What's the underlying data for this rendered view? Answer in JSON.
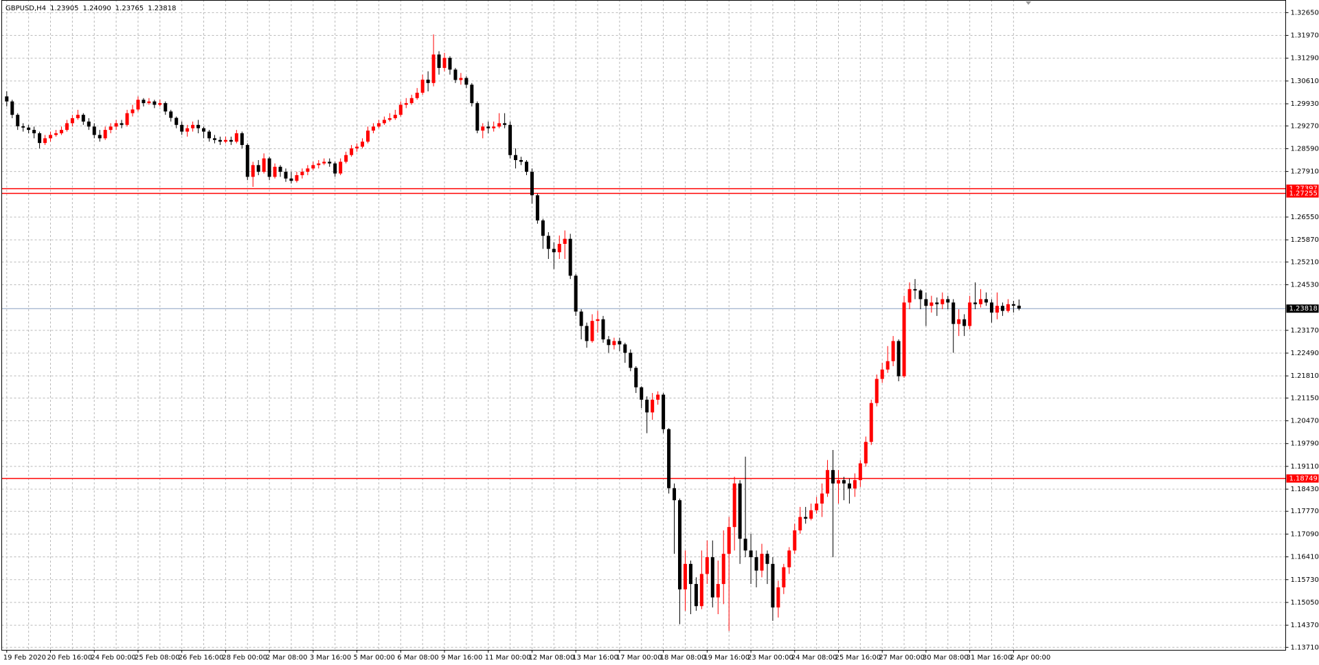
{
  "chart_data": {
    "type": "candlestick",
    "title": "GBPUSD,H4",
    "header_values": [
      "1.23905",
      "1.24090",
      "1.23765",
      "1.23818"
    ],
    "up_color": "#ff0000",
    "down_color": "#000000",
    "grid": true,
    "ylim": [
      1.13634,
      1.33027
    ],
    "yticks": [
      {
        "value": 1.3265,
        "label": "1.32650"
      },
      {
        "value": 1.3197,
        "label": "1.31970"
      },
      {
        "value": 1.3129,
        "label": "1.31290"
      },
      {
        "value": 1.3061,
        "label": "1.30610"
      },
      {
        "value": 1.2993,
        "label": "1.29930"
      },
      {
        "value": 1.2927,
        "label": "1.29270"
      },
      {
        "value": 1.2859,
        "label": "1.28590"
      },
      {
        "value": 1.2791,
        "label": "1.27910"
      },
      {
        "value": 1.2655,
        "label": "1.26550"
      },
      {
        "value": 1.2587,
        "label": "1.25870"
      },
      {
        "value": 1.2521,
        "label": "1.25210"
      },
      {
        "value": 1.2453,
        "label": "1.24530"
      },
      {
        "value": 1.2317,
        "label": "1.23170"
      },
      {
        "value": 1.2249,
        "label": "1.22490"
      },
      {
        "value": 1.2181,
        "label": "1.21810"
      },
      {
        "value": 1.2115,
        "label": "1.21150"
      },
      {
        "value": 1.2047,
        "label": "1.20470"
      },
      {
        "value": 1.1979,
        "label": "1.19790"
      },
      {
        "value": 1.1911,
        "label": "1.19110"
      },
      {
        "value": 1.1843,
        "label": "1.18430"
      },
      {
        "value": 1.1777,
        "label": "1.17770"
      },
      {
        "value": 1.1709,
        "label": "1.17090"
      },
      {
        "value": 1.1641,
        "label": "1.16410"
      },
      {
        "value": 1.1573,
        "label": "1.15730"
      },
      {
        "value": 1.1505,
        "label": "1.15050"
      },
      {
        "value": 1.1437,
        "label": "1.14370"
      },
      {
        "value": 1.1371,
        "label": "1.13710"
      }
    ],
    "hlines": [
      {
        "value": 1.27397,
        "color": "#ff0000"
      },
      {
        "value": 1.27255,
        "color": "#ff0000"
      },
      {
        "value": 1.18749,
        "color": "#ff0000"
      }
    ],
    "price_line_color": "#8aa0c0",
    "categories": [
      "19 Feb 2020",
      null,
      null,
      null,
      null,
      null,
      null,
      null,
      "20 Feb 16:00",
      null,
      null,
      null,
      null,
      null,
      null,
      null,
      "24 Feb 00:00",
      null,
      null,
      null,
      null,
      null,
      null,
      null,
      "25 Feb 08:00",
      null,
      null,
      null,
      null,
      null,
      null,
      null,
      "26 Feb 16:00",
      null,
      null,
      null,
      null,
      null,
      null,
      null,
      "28 Feb 00:00",
      null,
      null,
      null,
      null,
      null,
      null,
      null,
      "2 Mar 08:00",
      null,
      null,
      null,
      null,
      null,
      null,
      null,
      "3 Mar 16:00",
      null,
      null,
      null,
      null,
      null,
      null,
      null,
      "5 Mar 00:00",
      null,
      null,
      null,
      null,
      null,
      null,
      null,
      "6 Mar 08:00",
      null,
      null,
      null,
      null,
      null,
      null,
      null,
      "9 Mar 16:00",
      null,
      null,
      null,
      null,
      null,
      null,
      null,
      "11 Mar 00:00",
      null,
      null,
      null,
      null,
      null,
      null,
      null,
      "12 Mar 08:00",
      null,
      null,
      null,
      null,
      null,
      null,
      null,
      "13 Mar 16:00",
      null,
      null,
      null,
      null,
      null,
      null,
      null,
      "17 Mar 00:00",
      null,
      null,
      null,
      null,
      null,
      null,
      null,
      "18 Mar 08:00",
      null,
      null,
      null,
      null,
      null,
      null,
      null,
      "19 Mar 16:00",
      null,
      null,
      null,
      null,
      null,
      null,
      null,
      "23 Mar 00:00",
      null,
      null,
      null,
      null,
      null,
      null,
      null,
      "24 Mar 08:00",
      null,
      null,
      null,
      null,
      null,
      null,
      null,
      "25 Mar 16:00",
      null,
      null,
      null,
      null,
      null,
      null,
      null,
      "27 Mar 00:00",
      null,
      null,
      null,
      null,
      null,
      null,
      null,
      "30 Mar 08:00",
      null,
      null,
      null,
      null,
      null,
      null,
      null,
      "31 Mar 16:00",
      null,
      null,
      null,
      null,
      null,
      null,
      null,
      "2 Apr 00:00",
      null
    ],
    "open": [
      1.3015,
      1.3,
      1.296,
      1.2926,
      1.2922,
      1.2915,
      1.2905,
      1.2876,
      1.289,
      1.29,
      1.2905,
      1.2915,
      1.2935,
      1.295,
      1.296,
      1.294,
      1.2925,
      1.29,
      1.289,
      1.2915,
      1.2925,
      1.2935,
      1.293,
      1.2965,
      1.2976,
      1.3005,
      1.2995,
      1.3,
      1.299,
      1.2995,
      1.297,
      1.2951,
      1.293,
      1.291,
      1.292,
      1.293,
      1.292,
      1.291,
      1.289,
      1.2885,
      1.288,
      1.2885,
      1.288,
      1.2905,
      1.287,
      1.2775,
      1.281,
      1.279,
      1.283,
      1.2775,
      1.2805,
      1.279,
      1.277,
      1.2763,
      1.278,
      1.279,
      1.28,
      1.281,
      1.2815,
      1.282,
      1.2815,
      1.2785,
      1.282,
      1.284,
      1.286,
      1.2865,
      1.288,
      1.2913,
      1.2925,
      1.2935,
      1.2945,
      1.295,
      1.296,
      1.299,
      1.2995,
      1.301,
      1.3026,
      1.3065,
      1.3055,
      1.314,
      1.31,
      1.313,
      1.3095,
      1.3064,
      1.307,
      1.305,
      1.2995,
      1.2913,
      1.2925,
      1.292,
      1.2925,
      1.2935,
      1.293,
      1.284,
      1.2825,
      1.282,
      1.279,
      1.272,
      1.2645,
      1.2599,
      1.256,
      1.255,
      1.2575,
      1.259,
      1.248,
      1.2373,
      1.233,
      1.2285,
      1.2345,
      1.235,
      1.229,
      1.2273,
      1.2285,
      1.2275,
      1.225,
      1.2205,
      1.2147,
      1.211,
      1.2072,
      1.211,
      1.2125,
      1.2022,
      1.1846,
      1.181,
      1.1544,
      1.162,
      1.156,
      1.1494,
      1.159,
      1.164,
      1.152,
      1.156,
      1.165,
      1.173,
      1.186,
      1.1695,
      1.166,
      1.164,
      1.16,
      1.165,
      1.162,
      1.149,
      1.155,
      1.161,
      1.166,
      1.172,
      1.176,
      1.1755,
      1.178,
      1.18,
      1.183,
      1.19,
      1.186,
      1.187,
      1.186,
      1.1845,
      1.187,
      1.192,
      1.1984,
      1.21,
      1.2172,
      1.22,
      1.2225,
      1.2285,
      1.218,
      1.24,
      1.244,
      1.2436,
      1.241,
      1.239,
      1.24,
      1.2395,
      1.241,
      1.24,
      1.2336,
      1.235,
      1.233,
      1.24,
      1.2395,
      1.241,
      1.24,
      1.237,
      1.239,
      1.2375,
      1.2395,
      1.23905
    ],
    "high": [
      1.303,
      1.3005,
      1.2965,
      1.2935,
      1.293,
      1.2925,
      1.291,
      1.29,
      1.291,
      1.2915,
      1.2925,
      1.2945,
      1.296,
      1.2975,
      1.2965,
      1.295,
      1.2935,
      1.2915,
      1.2925,
      1.2935,
      1.2945,
      1.2945,
      1.2975,
      1.299,
      1.3015,
      1.301,
      1.301,
      1.3005,
      1.3005,
      1.3,
      1.2975,
      1.2955,
      1.294,
      1.293,
      1.294,
      1.2945,
      1.2925,
      1.2915,
      1.29,
      1.2895,
      1.2895,
      1.2895,
      1.2915,
      1.291,
      1.2875,
      1.282,
      1.2825,
      1.2845,
      1.2835,
      1.2815,
      1.281,
      1.28,
      1.279,
      1.279,
      1.28,
      1.281,
      1.282,
      1.2825,
      1.283,
      1.283,
      1.282,
      1.283,
      1.285,
      1.287,
      1.2875,
      1.289,
      1.2925,
      1.2935,
      1.2945,
      1.2955,
      1.2965,
      1.2975,
      1.3,
      1.301,
      1.302,
      1.304,
      1.308,
      1.309,
      1.32,
      1.315,
      1.3145,
      1.3135,
      1.31,
      1.3085,
      1.3075,
      1.3055,
      1.3,
      1.2935,
      1.294,
      1.294,
      1.2965,
      1.2965,
      1.294,
      1.286,
      1.2835,
      1.2825,
      1.28,
      1.2725,
      1.265,
      1.261,
      1.258,
      1.26,
      1.2615,
      1.2605,
      1.2485,
      1.238,
      1.234,
      1.2365,
      1.2375,
      1.236,
      1.23,
      1.2295,
      1.2295,
      1.228,
      1.226,
      1.221,
      1.215,
      1.212,
      1.213,
      1.2135,
      1.213,
      1.2025,
      1.186,
      1.1815,
      1.166,
      1.163,
      1.158,
      1.166,
      1.169,
      1.169,
      1.163,
      1.172,
      1.176,
      1.188,
      1.187,
      1.194,
      1.171,
      1.166,
      1.168,
      1.166,
      1.164,
      1.157,
      1.162,
      1.167,
      1.174,
      1.179,
      1.179,
      1.18,
      1.182,
      1.186,
      1.193,
      1.196,
      1.19,
      1.188,
      1.1875,
      1.189,
      1.193,
      1.2,
      1.211,
      1.2185,
      1.222,
      1.227,
      1.23,
      1.229,
      1.242,
      1.246,
      1.247,
      1.244,
      1.243,
      1.242,
      1.2415,
      1.243,
      1.242,
      1.241,
      1.238,
      1.2365,
      1.242,
      1.246,
      1.244,
      1.243,
      1.241,
      1.243,
      1.24,
      1.241,
      1.2405,
      1.2409
    ],
    "low": [
      1.2985,
      1.295,
      1.2915,
      1.291,
      1.2905,
      1.289,
      1.286,
      1.287,
      1.288,
      1.2895,
      1.29,
      1.291,
      1.2925,
      1.2945,
      1.293,
      1.2915,
      1.289,
      1.288,
      1.2885,
      1.2905,
      1.2915,
      1.292,
      1.2925,
      1.2955,
      1.297,
      1.2985,
      1.299,
      1.298,
      1.2985,
      1.296,
      1.294,
      1.292,
      1.29,
      1.2895,
      1.291,
      1.2905,
      1.289,
      1.288,
      1.2875,
      1.287,
      1.2875,
      1.287,
      1.2875,
      1.286,
      1.2765,
      1.2745,
      1.278,
      1.2785,
      1.2765,
      1.277,
      1.2775,
      1.276,
      1.2755,
      1.2758,
      1.277,
      1.278,
      1.2795,
      1.28,
      1.281,
      1.2805,
      1.2775,
      1.278,
      1.2815,
      1.2835,
      1.285,
      1.286,
      1.2875,
      1.2905,
      1.292,
      1.293,
      1.294,
      1.2945,
      1.2955,
      1.298,
      1.299,
      1.3005,
      1.302,
      1.303,
      1.3045,
      1.308,
      1.309,
      1.308,
      1.3055,
      1.305,
      1.304,
      1.2985,
      1.2905,
      1.289,
      1.2905,
      1.291,
      1.292,
      1.292,
      1.283,
      1.28,
      1.281,
      1.278,
      1.2695,
      1.2635,
      1.256,
      1.253,
      1.25,
      1.253,
      1.253,
      1.247,
      1.236,
      1.229,
      1.2265,
      1.228,
      1.231,
      1.228,
      1.225,
      1.226,
      1.2255,
      1.222,
      1.2195,
      1.213,
      1.2085,
      1.201,
      1.205,
      1.2095,
      1.201,
      1.183,
      1.165,
      1.144,
      1.148,
      1.147,
      1.148,
      1.1485,
      1.156,
      1.149,
      1.147,
      1.15,
      1.142,
      1.166,
      1.162,
      1.164,
      1.156,
      1.155,
      1.158,
      1.156,
      1.145,
      1.146,
      1.153,
      1.159,
      1.165,
      1.171,
      1.174,
      1.175,
      1.177,
      1.176,
      1.182,
      1.164,
      1.18,
      1.181,
      1.18,
      1.182,
      1.185,
      1.191,
      1.1975,
      1.209,
      1.216,
      1.219,
      1.221,
      1.2165,
      1.2175,
      1.238,
      1.241,
      1.238,
      1.233,
      1.237,
      1.236,
      1.238,
      1.238,
      1.225,
      1.23,
      1.23,
      1.232,
      1.238,
      1.2385,
      1.239,
      1.234,
      1.235,
      1.236,
      1.237,
      1.237,
      1.23765
    ],
    "close": [
      1.3,
      1.296,
      1.2926,
      1.2922,
      1.2915,
      1.2905,
      1.2876,
      1.289,
      1.29,
      1.2905,
      1.2915,
      1.2935,
      1.295,
      1.296,
      1.294,
      1.2925,
      1.29,
      1.289,
      1.2915,
      1.2925,
      1.2935,
      1.293,
      1.2965,
      1.2976,
      1.3005,
      1.2995,
      1.3,
      1.299,
      1.2995,
      1.297,
      1.2951,
      1.293,
      1.291,
      1.292,
      1.293,
      1.292,
      1.291,
      1.289,
      1.2885,
      1.288,
      1.2885,
      1.288,
      1.2905,
      1.287,
      1.2775,
      1.281,
      1.279,
      1.283,
      1.2775,
      1.2805,
      1.279,
      1.277,
      1.2763,
      1.278,
      1.279,
      1.28,
      1.281,
      1.2815,
      1.282,
      1.2815,
      1.2785,
      1.282,
      1.284,
      1.286,
      1.2865,
      1.288,
      1.2913,
      1.2925,
      1.2935,
      1.2945,
      1.295,
      1.296,
      1.299,
      1.2995,
      1.301,
      1.3026,
      1.3065,
      1.3055,
      1.314,
      1.31,
      1.313,
      1.3095,
      1.3064,
      1.307,
      1.305,
      1.2995,
      1.2913,
      1.2925,
      1.292,
      1.2925,
      1.2935,
      1.293,
      1.284,
      1.2825,
      1.282,
      1.279,
      1.272,
      1.2645,
      1.2599,
      1.256,
      1.255,
      1.2575,
      1.259,
      1.248,
      1.2373,
      1.233,
      1.2285,
      1.2345,
      1.235,
      1.229,
      1.2273,
      1.2285,
      1.2275,
      1.225,
      1.2205,
      1.2147,
      1.211,
      1.2072,
      1.211,
      1.2125,
      1.2022,
      1.1846,
      1.181,
      1.1544,
      1.162,
      1.156,
      1.1494,
      1.159,
      1.164,
      1.152,
      1.156,
      1.165,
      1.173,
      1.186,
      1.1695,
      1.166,
      1.164,
      1.16,
      1.165,
      1.162,
      1.149,
      1.155,
      1.161,
      1.166,
      1.172,
      1.176,
      1.1755,
      1.178,
      1.18,
      1.183,
      1.19,
      1.186,
      1.187,
      1.186,
      1.1845,
      1.187,
      1.192,
      1.1984,
      1.21,
      1.2172,
      1.22,
      1.2225,
      1.2285,
      1.218,
      1.24,
      1.244,
      1.2436,
      1.241,
      1.239,
      1.24,
      1.2395,
      1.241,
      1.24,
      1.2336,
      1.235,
      1.233,
      1.24,
      1.2395,
      1.241,
      1.24,
      1.237,
      1.239,
      1.2375,
      1.2395,
      1.23905,
      1.23818
    ]
  }
}
